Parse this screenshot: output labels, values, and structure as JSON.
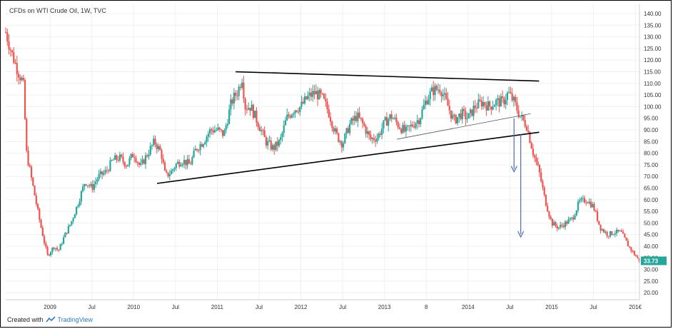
{
  "header": {
    "title": "CFDs on WTI Crude Oil, 1W, TVC"
  },
  "footer": {
    "created_with": "Created with",
    "brand": "TradingView"
  },
  "colors": {
    "up": "#26a69a",
    "down": "#ef5350",
    "trendline": "#000000",
    "arrow": "#5b73b8",
    "grid": "#eef0f3",
    "badge": "#26a69a"
  },
  "chart_data": {
    "type": "candlestick",
    "title": "CFDs on WTI Crude Oil, 1W, TVC",
    "x_range": [
      2008.47,
      2016.05
    ],
    "ylim": [
      17,
      144
    ],
    "y_ticks": [
      20,
      25,
      30,
      35,
      40,
      45,
      50,
      55,
      60,
      65,
      70,
      75,
      80,
      85,
      90,
      95,
      100,
      105,
      110,
      115,
      120,
      125,
      130,
      135,
      140
    ],
    "y_tick_labels": [
      "20.00",
      "25.00",
      "30.00",
      "35.00",
      "40.00",
      "45.00",
      "50.00",
      "55.00",
      "60.00",
      "65.00",
      "70.00",
      "75.00",
      "80.00",
      "85.00",
      "90.00",
      "95.00",
      "100.00",
      "105.00",
      "110.00",
      "115.00",
      "120.00",
      "125.00",
      "130.00",
      "135.00",
      "140.00"
    ],
    "x_ticks": [
      {
        "t": 2009.0,
        "label": "2009"
      },
      {
        "t": 2009.5,
        "label": "Jul"
      },
      {
        "t": 2010.0,
        "label": "2010"
      },
      {
        "t": 2010.5,
        "label": "Jul"
      },
      {
        "t": 2011.0,
        "label": "2011"
      },
      {
        "t": 2011.5,
        "label": "Jul"
      },
      {
        "t": 2012.0,
        "label": "2012"
      },
      {
        "t": 2012.5,
        "label": "Jul"
      },
      {
        "t": 2013.0,
        "label": "2013"
      },
      {
        "t": 2013.5,
        "label": "8"
      },
      {
        "t": 2014.0,
        "label": "2014"
      },
      {
        "t": 2014.5,
        "label": "Jul"
      },
      {
        "t": 2015.0,
        "label": "2015"
      },
      {
        "t": 2015.5,
        "label": "Jul"
      },
      {
        "t": 2016.0,
        "label": "201€"
      }
    ],
    "price_path": [
      [
        2008.47,
        132
      ],
      [
        2008.55,
        122
      ],
      [
        2008.62,
        115
      ],
      [
        2008.68,
        110
      ],
      [
        2008.72,
        80
      ],
      [
        2008.8,
        65
      ],
      [
        2008.87,
        52
      ],
      [
        2008.93,
        42
      ],
      [
        2008.97,
        36
      ],
      [
        2009.05,
        40
      ],
      [
        2009.1,
        38
      ],
      [
        2009.18,
        45
      ],
      [
        2009.25,
        50
      ],
      [
        2009.33,
        58
      ],
      [
        2009.42,
        68
      ],
      [
        2009.5,
        65
      ],
      [
        2009.58,
        70
      ],
      [
        2009.67,
        72
      ],
      [
        2009.75,
        77
      ],
      [
        2009.83,
        78
      ],
      [
        2009.92,
        75
      ],
      [
        2010.0,
        80
      ],
      [
        2010.08,
        74
      ],
      [
        2010.17,
        80
      ],
      [
        2010.25,
        85
      ],
      [
        2010.33,
        80
      ],
      [
        2010.38,
        70
      ],
      [
        2010.45,
        72
      ],
      [
        2010.5,
        75
      ],
      [
        2010.58,
        77
      ],
      [
        2010.67,
        75
      ],
      [
        2010.75,
        82
      ],
      [
        2010.83,
        85
      ],
      [
        2010.92,
        90
      ],
      [
        2011.0,
        90
      ],
      [
        2011.08,
        88
      ],
      [
        2011.17,
        102
      ],
      [
        2011.25,
        107
      ],
      [
        2011.3,
        113
      ],
      [
        2011.33,
        100
      ],
      [
        2011.4,
        100
      ],
      [
        2011.45,
        96
      ],
      [
        2011.5,
        92
      ],
      [
        2011.58,
        85
      ],
      [
        2011.67,
        82
      ],
      [
        2011.75,
        85
      ],
      [
        2011.83,
        95
      ],
      [
        2011.92,
        99
      ],
      [
        2012.0,
        100
      ],
      [
        2012.08,
        104
      ],
      [
        2012.17,
        106
      ],
      [
        2012.25,
        104
      ],
      [
        2012.33,
        98
      ],
      [
        2012.42,
        88
      ],
      [
        2012.5,
        84
      ],
      [
        2012.58,
        92
      ],
      [
        2012.67,
        96
      ],
      [
        2012.75,
        92
      ],
      [
        2012.83,
        86
      ],
      [
        2012.92,
        87
      ],
      [
        2013.0,
        93
      ],
      [
        2013.08,
        96
      ],
      [
        2013.17,
        92
      ],
      [
        2013.25,
        89
      ],
      [
        2013.33,
        92
      ],
      [
        2013.42,
        95
      ],
      [
        2013.5,
        103
      ],
      [
        2013.58,
        107
      ],
      [
        2013.67,
        108
      ],
      [
        2013.75,
        101
      ],
      [
        2013.83,
        94
      ],
      [
        2013.92,
        97
      ],
      [
        2014.0,
        95
      ],
      [
        2014.08,
        100
      ],
      [
        2014.17,
        102
      ],
      [
        2014.25,
        100
      ],
      [
        2014.33,
        102
      ],
      [
        2014.42,
        102
      ],
      [
        2014.48,
        106
      ],
      [
        2014.55,
        102
      ],
      [
        2014.62,
        96
      ],
      [
        2014.7,
        92
      ],
      [
        2014.78,
        80
      ],
      [
        2014.85,
        72
      ],
      [
        2014.92,
        60
      ],
      [
        2015.0,
        50
      ],
      [
        2015.08,
        48
      ],
      [
        2015.17,
        50
      ],
      [
        2015.25,
        52
      ],
      [
        2015.33,
        59
      ],
      [
        2015.42,
        60
      ],
      [
        2015.5,
        57
      ],
      [
        2015.58,
        48
      ],
      [
        2015.67,
        45
      ],
      [
        2015.75,
        46
      ],
      [
        2015.83,
        46
      ],
      [
        2015.92,
        40
      ],
      [
        2016.0,
        36
      ],
      [
        2016.05,
        33.73
      ]
    ],
    "current_price": 33.73,
    "current_price_label": "33.73",
    "annotations": [
      {
        "type": "trendline",
        "name": "upper-resistance",
        "from": [
          2011.22,
          115
        ],
        "to": [
          2014.85,
          111
        ]
      },
      {
        "type": "trendline",
        "name": "lower-support",
        "from": [
          2010.28,
          67
        ],
        "to": [
          2014.85,
          89
        ]
      },
      {
        "type": "trendline",
        "name": "inner-support",
        "from": [
          2013.15,
          86
        ],
        "to": [
          2014.75,
          97
        ]
      },
      {
        "type": "arrow",
        "name": "target-arrow-1",
        "from": [
          2014.55,
          95
        ],
        "to": [
          2014.55,
          72
        ]
      },
      {
        "type": "arrow",
        "name": "target-arrow-2",
        "from": [
          2014.63,
          88
        ],
        "to": [
          2014.63,
          44
        ]
      }
    ]
  }
}
